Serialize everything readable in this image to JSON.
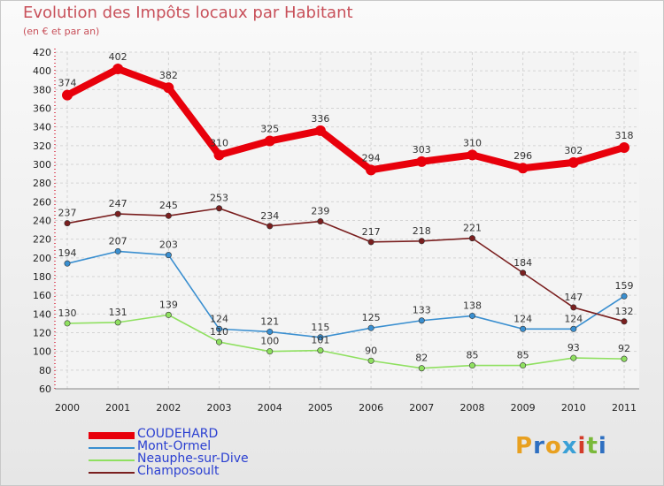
{
  "header": {
    "title": "Evolution des Impôts locaux par Habitant",
    "subtitle": "(en € et par an)"
  },
  "logo": {
    "text": "Proxiti",
    "colors": [
      "#e8a020",
      "#2e6fc1",
      "#e8a020",
      "#3aa0d6",
      "#d33c2a",
      "#7ab93a",
      "#2e6fc1"
    ]
  },
  "chart_data": {
    "type": "line",
    "title": "Evolution des Impôts locaux par Habitant",
    "subtitle": "(en € et par an)",
    "x": [
      "2000",
      "2001",
      "2002",
      "2003",
      "2004",
      "2005",
      "2006",
      "2007",
      "2008",
      "2009",
      "2010",
      "2011"
    ],
    "ylim": [
      60,
      420
    ],
    "yticks": [
      60,
      80,
      100,
      120,
      140,
      160,
      180,
      200,
      220,
      240,
      260,
      280,
      300,
      320,
      340,
      360,
      380,
      400,
      420
    ],
    "grid": true,
    "legend_placement": "bottom-left",
    "series": [
      {
        "name": "COUDEHARD",
        "color": "#e8000b",
        "emphasis": true,
        "values": [
          374,
          402,
          382,
          310,
          325,
          336,
          294,
          303,
          310,
          296,
          302,
          318
        ]
      },
      {
        "name": "Mont-Ormel",
        "color": "#3a8fd0",
        "emphasis": false,
        "values": [
          194,
          207,
          203,
          124,
          121,
          115,
          125,
          133,
          138,
          124,
          124,
          159
        ]
      },
      {
        "name": "Neauphe-sur-Dive",
        "color": "#8fe060",
        "emphasis": false,
        "values": [
          130,
          131,
          139,
          110,
          100,
          101,
          90,
          82,
          85,
          85,
          93,
          92
        ]
      },
      {
        "name": "Champosoult",
        "color": "#7a1f1f",
        "emphasis": false,
        "values": [
          237,
          247,
          245,
          253,
          234,
          239,
          217,
          218,
          221,
          184,
          147,
          132
        ]
      }
    ]
  }
}
